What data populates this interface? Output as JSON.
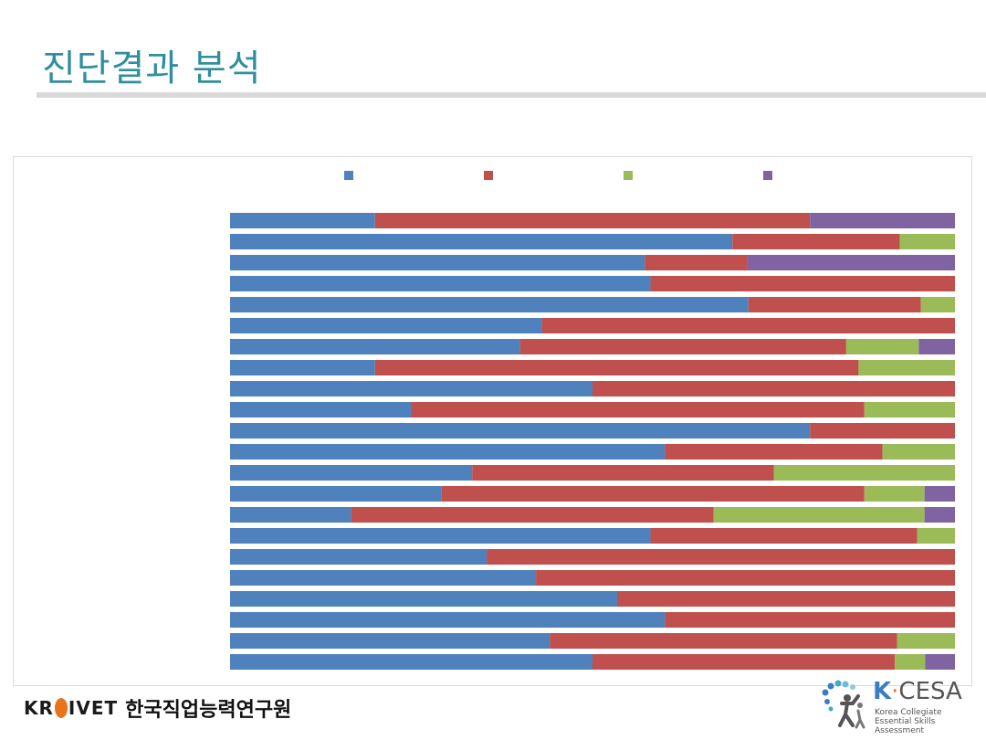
{
  "slide": {
    "title": "진단결과 분석"
  },
  "footer": {
    "krivet_latin_a": "KR",
    "krivet_latin_b": "IVET",
    "krivet_korean": "한국직업능력연구원",
    "kcesa_k": "K",
    "kcesa_dot": "·",
    "kcesa_rest": "CESA",
    "kcesa_sub_line1": "Korea Collegiate",
    "kcesa_sub_line2": "Essential Skills Assessment"
  },
  "chart_data": {
    "type": "bar",
    "orientation": "horizontal",
    "stacked": true,
    "percent_stacked": true,
    "legend_position": "top",
    "grid": false,
    "xlim": [
      0,
      100
    ],
    "categories": [
      "",
      "",
      "",
      "",
      "",
      "",
      "",
      "",
      "",
      "",
      "",
      "",
      "",
      "",
      "",
      "",
      "",
      "",
      "",
      "",
      "",
      ""
    ],
    "series": [
      {
        "color": "#4f81bd",
        "values": [
          20,
          69.3,
          57.2,
          58,
          71.5,
          43,
          40,
          20,
          50,
          25,
          80,
          60,
          33.4,
          29.2,
          16.7,
          58,
          35.4,
          42.2,
          53.4,
          60,
          44.1,
          50
        ]
      },
      {
        "color": "#c0504d",
        "values": [
          60,
          23.1,
          14.2,
          42,
          23.8,
          57,
          45,
          66.7,
          50,
          62.5,
          20,
          30,
          41.6,
          58.3,
          50,
          36.8,
          64.6,
          57.8,
          46.6,
          40,
          47.9,
          41.7
        ]
      },
      {
        "color": "#9bbb59",
        "values": [
          0,
          7.6,
          0,
          0,
          4.7,
          0,
          10,
          13.3,
          0,
          12.5,
          0,
          10,
          25,
          8.3,
          29.1,
          5.2,
          0,
          0,
          0,
          0,
          8,
          4.2
        ]
      },
      {
        "color": "#8064a2",
        "values": [
          20,
          0,
          28.6,
          0,
          0,
          0,
          5,
          0,
          0,
          0,
          0,
          0,
          0,
          4.2,
          4.2,
          0,
          0,
          0,
          0,
          0,
          0,
          4.1
        ]
      }
    ]
  }
}
